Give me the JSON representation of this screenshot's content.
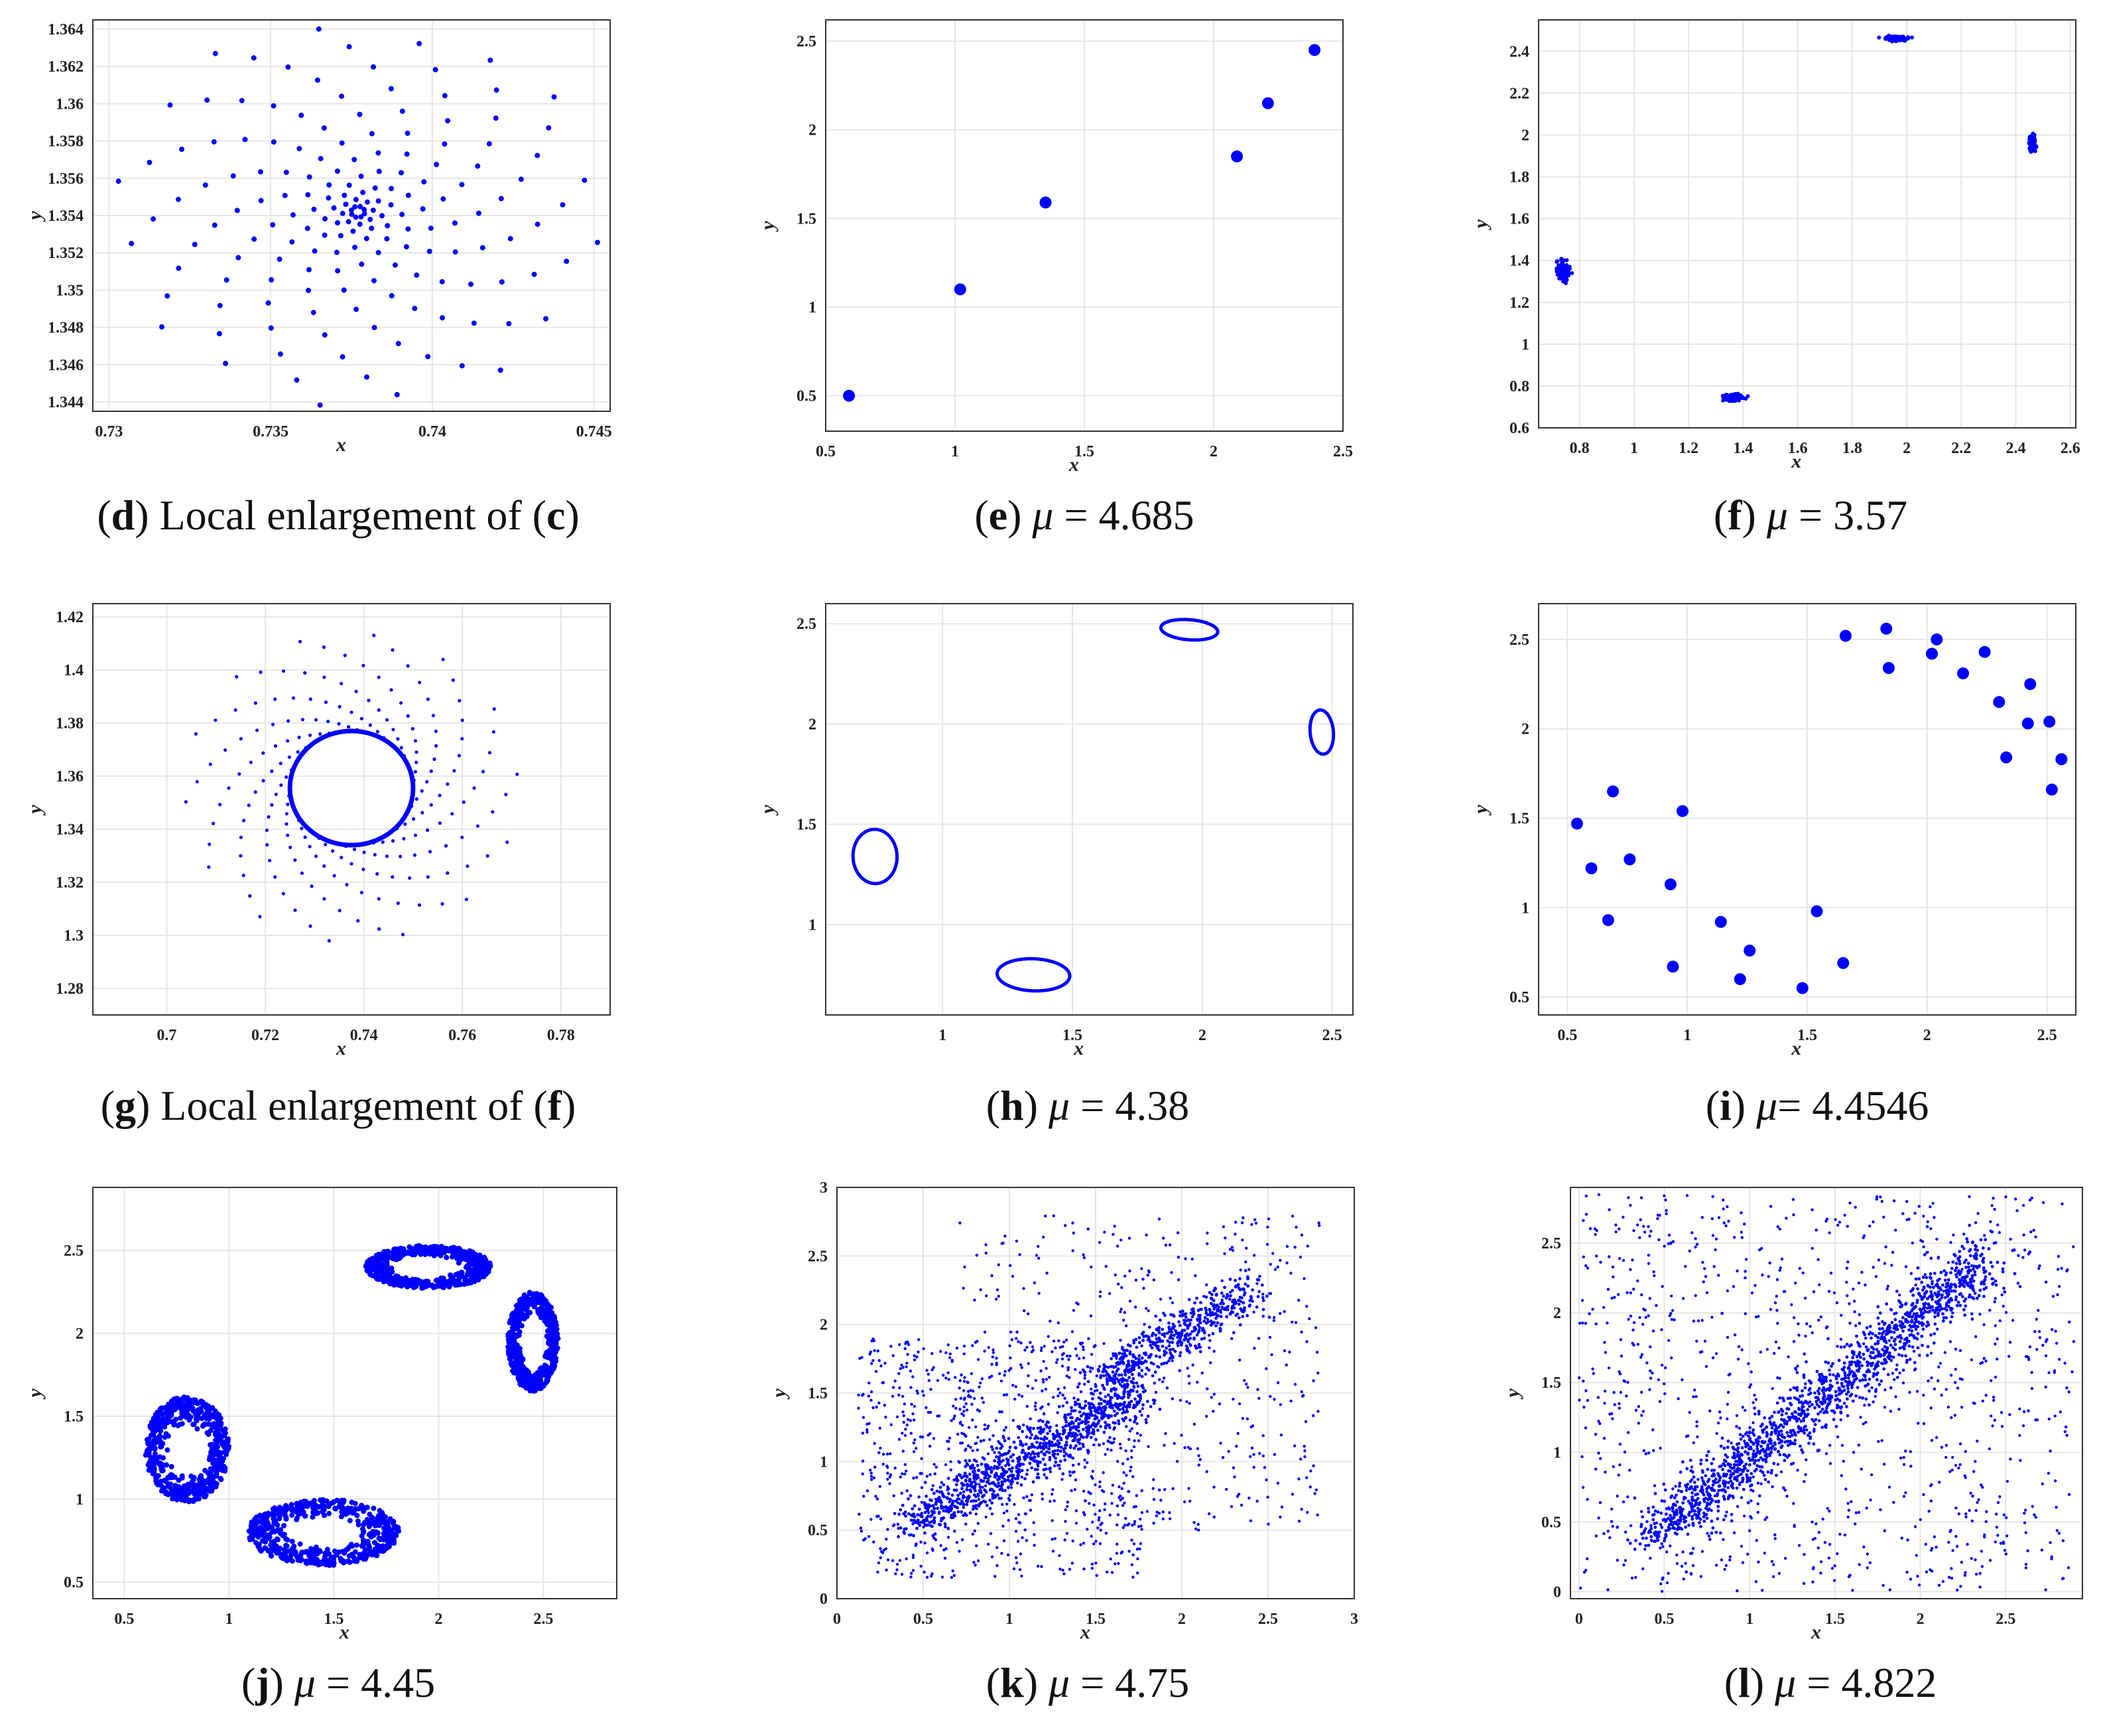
{
  "colors": {
    "marker": "#0000ff",
    "grid": "#e6e6e6",
    "axis": "#333333"
  },
  "chart_data": [
    {
      "id": "d",
      "type": "scatter",
      "pattern": "spiral",
      "caption": {
        "letter": "d",
        "text_before": "Local enlargement of (",
        "ref": "c",
        "text_after": ")"
      },
      "xlabel": "x",
      "ylabel": "y",
      "xlim": [
        0.7295,
        0.7455
      ],
      "ylim": [
        1.3435,
        1.3645
      ],
      "xticks": [
        0.73,
        0.735,
        0.74,
        0.745
      ],
      "xtick_labels": [
        "0.73",
        "0.735",
        "0.74",
        "0.745"
      ],
      "yticks": [
        1.344,
        1.346,
        1.348,
        1.35,
        1.352,
        1.354,
        1.356,
        1.358,
        1.36,
        1.362,
        1.364
      ],
      "ytick_labels": [
        "1.344",
        "1.346",
        "1.348",
        "1.35",
        "1.352",
        "1.354",
        "1.356",
        "1.358",
        "1.36",
        "1.362",
        "1.364"
      ],
      "spiral": {
        "center": [
          0.7377,
          1.3542
        ],
        "arms": 8,
        "rmax": 0.0075,
        "points_per_arm": 22,
        "turns": 1.6,
        "aspect": 1.4
      }
    },
    {
      "id": "e",
      "type": "scatter",
      "caption": {
        "letter": "e",
        "param": "μ",
        "eq": " = ",
        "value": "4.685"
      },
      "xlabel": "x",
      "ylabel": "y",
      "xlim": [
        0.5,
        2.5
      ],
      "ylim": [
        0.3,
        2.62
      ],
      "xticks": [
        0.5,
        1,
        1.5,
        2,
        2.5
      ],
      "xtick_labels": [
        "0.5",
        "1",
        "1.5",
        "2",
        "2.5"
      ],
      "yticks": [
        0.5,
        1,
        1.5,
        2,
        2.5
      ],
      "ytick_labels": [
        "0.5",
        "1",
        "1.5",
        "2",
        "2.5"
      ],
      "points": [
        [
          0.59,
          0.5
        ],
        [
          1.02,
          1.1
        ],
        [
          1.35,
          1.59
        ],
        [
          2.09,
          1.85
        ],
        [
          2.21,
          2.15
        ],
        [
          2.39,
          2.45
        ]
      ],
      "marker_size": 9
    },
    {
      "id": "f",
      "type": "scatter",
      "pattern": "clusters",
      "caption": {
        "letter": "f",
        "param": "μ",
        "eq": " = ",
        "value": "3.57"
      },
      "xlabel": "x",
      "ylabel": "y",
      "xlim": [
        0.65,
        2.62
      ],
      "ylim": [
        0.6,
        2.55
      ],
      "xticks": [
        0.8,
        1,
        1.2,
        1.4,
        1.6,
        1.8,
        2,
        2.2,
        2.4,
        2.6
      ],
      "xtick_labels": [
        "0.8",
        "1",
        "1.2",
        "1.4",
        "1.6",
        "1.8",
        "2",
        "2.2",
        "2.4",
        "2.6"
      ],
      "yticks": [
        0.6,
        0.8,
        1,
        1.2,
        1.4,
        1.6,
        1.8,
        2,
        2.2,
        2.4
      ],
      "ytick_labels": [
        "0.6",
        "0.8",
        "1",
        "1.2",
        "1.4",
        "1.6",
        "1.8",
        "2",
        "2.2",
        "2.4"
      ],
      "clusters": [
        [
          0.74,
          1.35,
          0.025,
          0.045
        ],
        [
          1.36,
          0.745,
          0.04,
          0.02
        ],
        [
          1.96,
          2.46,
          0.04,
          0.012
        ],
        [
          2.46,
          1.96,
          0.012,
          0.04
        ]
      ]
    },
    {
      "id": "g",
      "type": "scatter",
      "pattern": "spiral-cycle",
      "caption": {
        "letter": "g",
        "text_before": "Local enlargement of (",
        "ref": "f",
        "text_after": ")"
      },
      "xlabel": "x",
      "ylabel": "y",
      "xlim": [
        0.685,
        0.79
      ],
      "ylim": [
        1.27,
        1.425
      ],
      "xticks": [
        0.7,
        0.72,
        0.74,
        0.76,
        0.78
      ],
      "xtick_labels": [
        "0.7",
        "0.72",
        "0.74",
        "0.76",
        "0.78"
      ],
      "yticks": [
        1.28,
        1.3,
        1.32,
        1.34,
        1.36,
        1.38,
        1.4,
        1.42
      ],
      "ytick_labels": [
        "1.28",
        "1.3",
        "1.32",
        "1.34",
        "1.36",
        "1.38",
        "1.4",
        "1.42"
      ],
      "cycle": {
        "center": [
          0.7375,
          1.3555
        ],
        "rx": 0.0125,
        "ry": 0.0215
      },
      "spiral": {
        "arms": 14,
        "points_per_arm": 14,
        "rmax_scale": 2.7
      }
    },
    {
      "id": "h",
      "type": "line",
      "pattern": "closed-curves",
      "caption": {
        "letter": "h",
        "param": "μ",
        "eq": " = ",
        "value": "4.38"
      },
      "xlabel": "x",
      "ylabel": "y",
      "xlim": [
        0.55,
        2.58
      ],
      "ylim": [
        0.55,
        2.6
      ],
      "xticks": [
        1,
        1.5,
        2,
        2.5
      ],
      "xtick_labels": [
        "1",
        "1.5",
        "2",
        "2.5"
      ],
      "yticks": [
        1,
        1.5,
        2,
        2.5
      ],
      "ytick_labels": [
        "1",
        "1.5",
        "2",
        "2.5"
      ],
      "curves": [
        [
          0.74,
          1.34,
          0.085,
          0.135,
          0.1
        ],
        [
          1.35,
          0.75,
          0.14,
          0.08,
          -0.05
        ],
        [
          1.95,
          2.47,
          0.11,
          0.05,
          -0.1
        ],
        [
          2.46,
          1.96,
          0.045,
          0.11,
          0.15
        ]
      ]
    },
    {
      "id": "i",
      "type": "scatter",
      "caption": {
        "letter": "i",
        "param": "μ",
        "eq": "= ",
        "value": "4.4546"
      },
      "xlabel": "x",
      "ylabel": "y",
      "xlim": [
        0.38,
        2.62
      ],
      "ylim": [
        0.4,
        2.7
      ],
      "xticks": [
        0.5,
        1,
        1.5,
        2,
        2.5
      ],
      "xtick_labels": [
        "0.5",
        "1",
        "1.5",
        "2",
        "2.5"
      ],
      "yticks": [
        0.5,
        1,
        1.5,
        2,
        2.5
      ],
      "ytick_labels": [
        "0.5",
        "1",
        "1.5",
        "2",
        "2.5"
      ],
      "points": [
        [
          0.54,
          1.47
        ],
        [
          0.6,
          1.22
        ],
        [
          0.67,
          0.93
        ],
        [
          0.69,
          1.65
        ],
        [
          0.76,
          1.27
        ],
        [
          0.93,
          1.13
        ],
        [
          0.94,
          0.67
        ],
        [
          0.98,
          1.54
        ],
        [
          1.14,
          0.92
        ],
        [
          1.22,
          0.6
        ],
        [
          1.26,
          0.76
        ],
        [
          1.48,
          0.55
        ],
        [
          1.54,
          0.98
        ],
        [
          1.65,
          0.69
        ],
        [
          1.66,
          2.52
        ],
        [
          1.83,
          2.56
        ],
        [
          1.84,
          2.34
        ],
        [
          2.02,
          2.42
        ],
        [
          2.04,
          2.5
        ],
        [
          2.15,
          2.31
        ],
        [
          2.24,
          2.43
        ],
        [
          2.3,
          2.15
        ],
        [
          2.33,
          1.84
        ],
        [
          2.42,
          2.03
        ],
        [
          2.43,
          2.25
        ],
        [
          2.51,
          2.04
        ],
        [
          2.52,
          1.66
        ],
        [
          2.56,
          1.83
        ]
      ],
      "marker_size": 9
    },
    {
      "id": "j",
      "type": "scatter",
      "pattern": "rings",
      "caption": {
        "letter": "j",
        "param": "μ",
        "eq": " = ",
        "value": "4.45"
      },
      "xlabel": "x",
      "ylabel": "y",
      "xlim": [
        0.35,
        2.85
      ],
      "ylim": [
        0.4,
        2.88
      ],
      "xticks": [
        0.5,
        1,
        1.5,
        2,
        2.5
      ],
      "xtick_labels": [
        "0.5",
        "1",
        "1.5",
        "2",
        "2.5"
      ],
      "yticks": [
        0.5,
        1,
        1.5,
        2,
        2.5
      ],
      "ytick_labels": [
        "0.5",
        "1",
        "1.5",
        "2",
        "2.5"
      ],
      "rings": [
        [
          0.8,
          1.3,
          0.2,
          0.32,
          0.45
        ],
        [
          1.45,
          0.8,
          0.36,
          0.2,
          0.45
        ],
        [
          1.95,
          2.4,
          0.3,
          0.13,
          0.5
        ],
        [
          2.45,
          1.95,
          0.12,
          0.3,
          0.5
        ]
      ]
    },
    {
      "id": "k",
      "type": "scatter",
      "pattern": "chaotic-two-lobes",
      "caption": {
        "letter": "k",
        "param": "μ",
        "eq": " = ",
        "value": "4.75"
      },
      "xlabel": "x",
      "ylabel": "y",
      "xlim": [
        0,
        3
      ],
      "ylim": [
        0,
        3
      ],
      "xticks": [
        0,
        0.5,
        1,
        1.5,
        2,
        2.5,
        3
      ],
      "xtick_labels": [
        "0",
        "0.5",
        "1",
        "1.5",
        "2",
        "2.5",
        "3"
      ],
      "yticks": [
        0,
        0.5,
        1,
        1.5,
        2,
        2.5,
        3
      ],
      "ytick_labels": [
        "0",
        "0.5",
        "1",
        "1.5",
        "2",
        "2.5",
        "3"
      ]
    },
    {
      "id": "l",
      "type": "scatter",
      "pattern": "chaotic-merged",
      "caption": {
        "letter": "l",
        "param": "μ",
        "eq": " = ",
        "value": "4.822"
      },
      "xlabel": "x",
      "ylabel": "y",
      "xlim": [
        -0.05,
        2.95
      ],
      "ylim": [
        -0.05,
        2.9
      ],
      "xticks": [
        0,
        0.5,
        1,
        1.5,
        2,
        2.5
      ],
      "xtick_labels": [
        "0",
        "0.5",
        "1",
        "1.5",
        "2",
        "2.5"
      ],
      "yticks": [
        0,
        0.5,
        1,
        1.5,
        2,
        2.5
      ],
      "ytick_labels": [
        "0",
        "0.5",
        "1",
        "1.5",
        "2",
        "2.5"
      ]
    }
  ]
}
